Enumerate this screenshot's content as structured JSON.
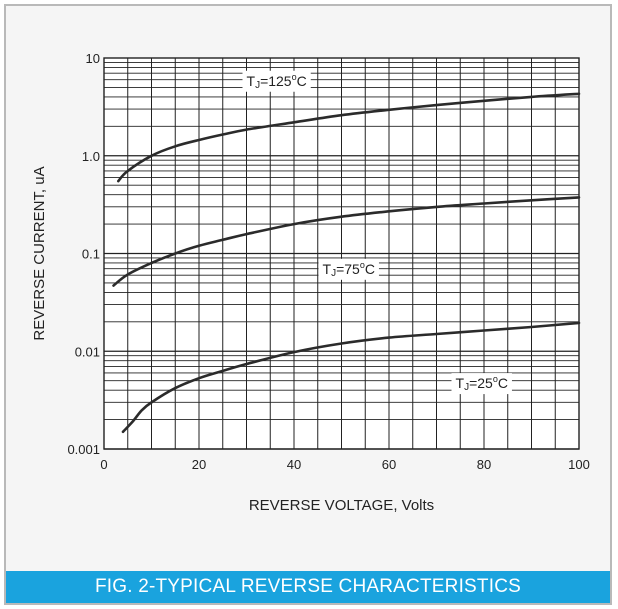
{
  "chart_data": {
    "type": "line",
    "title": "",
    "xlabel": "REVERSE VOLTAGE, Volts",
    "ylabel": "REVERSE CURRENT, uA",
    "xlim": [
      0,
      100
    ],
    "ylim": [
      0.001,
      10
    ],
    "y_scale": "log",
    "grid": true,
    "x_ticks": [
      0,
      20,
      40,
      60,
      80,
      100
    ],
    "x_tick_labels": [
      "0",
      "20",
      "40",
      "60",
      "80",
      "100"
    ],
    "y_ticks": [
      0.001,
      0.01,
      0.1,
      1,
      10
    ],
    "y_tick_labels": [
      "0.001",
      "0.01",
      "0.1",
      "1.0",
      "10"
    ],
    "series": [
      {
        "name": "TJ=125°C",
        "label_main": "T",
        "label_sub": "J",
        "label_rest": "=125",
        "label_unit": "C",
        "label_at": [
          30,
          5.2
        ],
        "x": [
          3,
          5,
          10,
          15,
          20,
          25,
          30,
          40,
          50,
          60,
          70,
          80,
          90,
          100
        ],
        "y": [
          0.55,
          0.7,
          1.0,
          1.25,
          1.45,
          1.65,
          1.85,
          2.2,
          2.6,
          2.95,
          3.3,
          3.65,
          4.0,
          4.3
        ]
      },
      {
        "name": "TJ=75°C",
        "label_main": "T",
        "label_sub": "J",
        "label_rest": "=75",
        "label_unit": "C",
        "label_at": [
          46,
          0.062
        ],
        "x": [
          2,
          5,
          10,
          15,
          20,
          25,
          30,
          40,
          50,
          60,
          70,
          80,
          90,
          100
        ],
        "y": [
          0.047,
          0.061,
          0.08,
          0.1,
          0.12,
          0.138,
          0.158,
          0.2,
          0.238,
          0.27,
          0.3,
          0.325,
          0.35,
          0.375
        ]
      },
      {
        "name": "TJ=25°C",
        "label_main": "T",
        "label_sub": "J",
        "label_rest": "=25",
        "label_unit": "C",
        "label_at": [
          74,
          0.0042
        ],
        "x": [
          4,
          6,
          8,
          10,
          15,
          20,
          25,
          30,
          40,
          50,
          60,
          70,
          80,
          90,
          100
        ],
        "y": [
          0.0015,
          0.0019,
          0.0025,
          0.003,
          0.0042,
          0.0053,
          0.0063,
          0.0074,
          0.0098,
          0.012,
          0.0138,
          0.015,
          0.0163,
          0.0177,
          0.0195
        ]
      }
    ]
  },
  "caption": "FIG. 2-TYPICAL REVERSE CHARACTERISTICS",
  "colors": {
    "background": "#f5f5f5",
    "caption_background": "#1aa3de",
    "caption_text": "#ffffff",
    "grid": "#222222",
    "curve": "#2b2b2b",
    "frame_border": "#b9b9b9"
  }
}
